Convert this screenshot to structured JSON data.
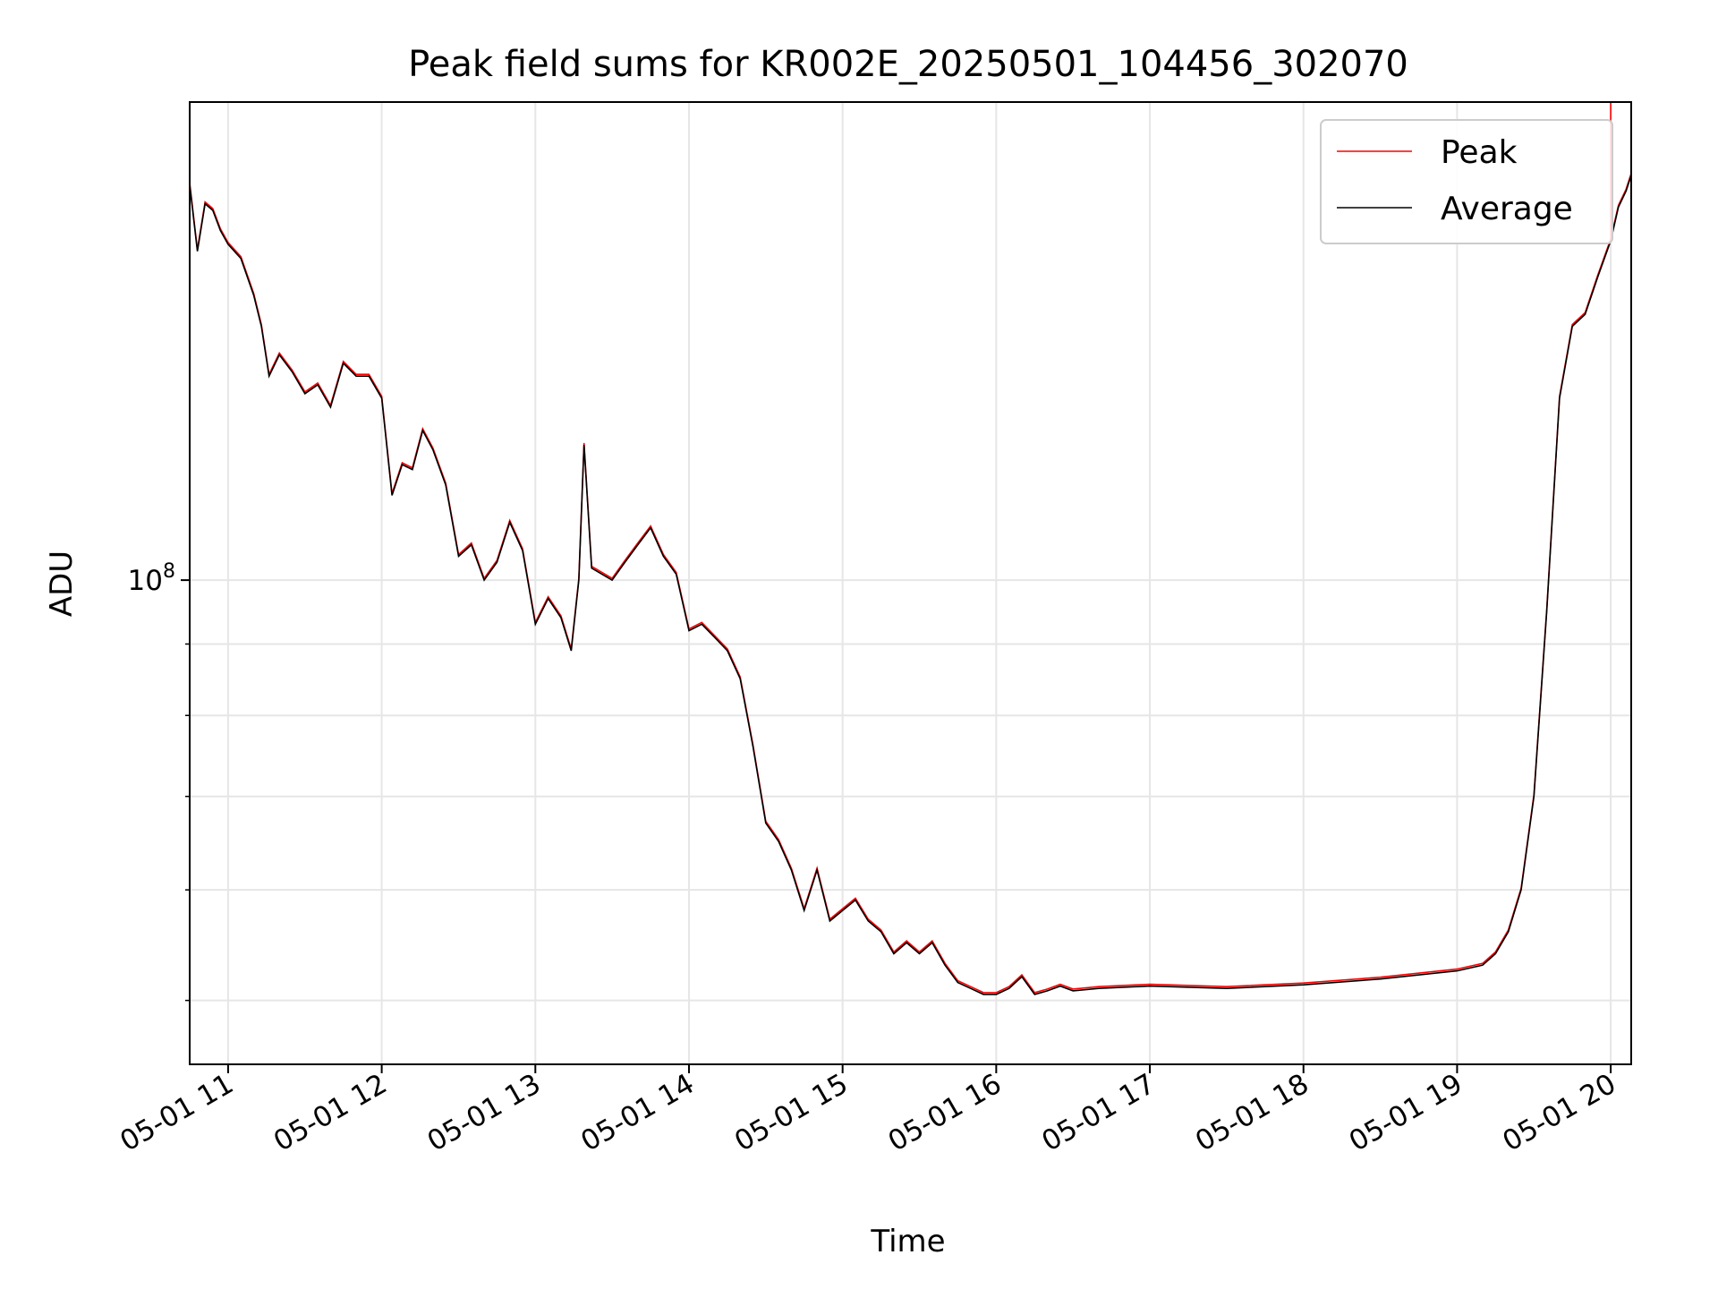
{
  "chart_data": {
    "type": "line",
    "title": "Peak field sums for KR002E_20250501_104456_302070",
    "xlabel": "Time",
    "ylabel": "ADU",
    "x_type": "datetime",
    "xlim": [
      "2025-05-01 10:45",
      "2025-05-01 20:08"
    ],
    "ylim": [
      45000000,
      220000000
    ],
    "yscale": "log",
    "x_ticks": [
      "05-01 11",
      "05-01 12",
      "05-01 13",
      "05-01 14",
      "05-01 15",
      "05-01 16",
      "05-01 17",
      "05-01 18",
      "05-01 19",
      "05-01 20"
    ],
    "y_major_ticks": [
      {
        "value": 100000000,
        "base": "10",
        "exp": "8"
      }
    ],
    "y_minor_ticks": [
      50000000,
      60000000,
      70000000,
      80000000,
      90000000
    ],
    "grid": true,
    "legend_position": "upper right",
    "series": [
      {
        "name": "Peak",
        "color": "#ff0000",
        "line_width": 1
      },
      {
        "name": "Average",
        "color": "#000000",
        "line_width": 1,
        "x": [
          "2025-05-01 10:45",
          "2025-05-01 10:48",
          "2025-05-01 10:51",
          "2025-05-01 10:54",
          "2025-05-01 10:57",
          "2025-05-01 11:00",
          "2025-05-01 11:05",
          "2025-05-01 11:10",
          "2025-05-01 11:13",
          "2025-05-01 11:16",
          "2025-05-01 11:20",
          "2025-05-01 11:25",
          "2025-05-01 11:30",
          "2025-05-01 11:35",
          "2025-05-01 11:40",
          "2025-05-01 11:45",
          "2025-05-01 11:50",
          "2025-05-01 11:55",
          "2025-05-01 12:00",
          "2025-05-01 12:04",
          "2025-05-01 12:08",
          "2025-05-01 12:12",
          "2025-05-01 12:16",
          "2025-05-01 12:20",
          "2025-05-01 12:25",
          "2025-05-01 12:30",
          "2025-05-01 12:35",
          "2025-05-01 12:40",
          "2025-05-01 12:45",
          "2025-05-01 12:50",
          "2025-05-01 12:55",
          "2025-05-01 13:00",
          "2025-05-01 13:05",
          "2025-05-01 13:10",
          "2025-05-01 13:14",
          "2025-05-01 13:17",
          "2025-05-01 13:19",
          "2025-05-01 13:22",
          "2025-05-01 13:26",
          "2025-05-01 13:30",
          "2025-05-01 13:35",
          "2025-05-01 13:40",
          "2025-05-01 13:45",
          "2025-05-01 13:50",
          "2025-05-01 13:55",
          "2025-05-01 14:00",
          "2025-05-01 14:05",
          "2025-05-01 14:10",
          "2025-05-01 14:15",
          "2025-05-01 14:20",
          "2025-05-01 14:25",
          "2025-05-01 14:30",
          "2025-05-01 14:35",
          "2025-05-01 14:40",
          "2025-05-01 14:45",
          "2025-05-01 14:50",
          "2025-05-01 14:55",
          "2025-05-01 15:00",
          "2025-05-01 15:05",
          "2025-05-01 15:10",
          "2025-05-01 15:15",
          "2025-05-01 15:20",
          "2025-05-01 15:25",
          "2025-05-01 15:30",
          "2025-05-01 15:35",
          "2025-05-01 15:40",
          "2025-05-01 15:45",
          "2025-05-01 15:50",
          "2025-05-01 15:55",
          "2025-05-01 16:00",
          "2025-05-01 16:05",
          "2025-05-01 16:10",
          "2025-05-01 16:15",
          "2025-05-01 16:20",
          "2025-05-01 16:25",
          "2025-05-01 16:30",
          "2025-05-01 16:40",
          "2025-05-01 17:00",
          "2025-05-01 17:30",
          "2025-05-01 18:00",
          "2025-05-01 18:30",
          "2025-05-01 19:00",
          "2025-05-01 19:10",
          "2025-05-01 19:15",
          "2025-05-01 19:20",
          "2025-05-01 19:25",
          "2025-05-01 19:30",
          "2025-05-01 19:35",
          "2025-05-01 19:40",
          "2025-05-01 19:45",
          "2025-05-01 19:50",
          "2025-05-01 19:55",
          "2025-05-01 20:00",
          "2025-05-01 20:03",
          "2025-05-01 20:06",
          "2025-05-01 20:08"
        ],
        "y": [
          192000000,
          172000000,
          186000000,
          184000000,
          178000000,
          174000000,
          170000000,
          160000000,
          152000000,
          140000000,
          145000000,
          141000000,
          136000000,
          138000000,
          133000000,
          143000000,
          140000000,
          140000000,
          135000000,
          115000000,
          121000000,
          120000000,
          128000000,
          124000000,
          117000000,
          104000000,
          106000000,
          100000000,
          103000000,
          110000000,
          105000000,
          93000000,
          97000000,
          94000000,
          89000000,
          100000000,
          125000000,
          102000000,
          101000000,
          100000000,
          103000000,
          106000000,
          109000000,
          104000000,
          101000000,
          92000000,
          93000000,
          91000000,
          89000000,
          85000000,
          76000000,
          67000000,
          65000000,
          62000000,
          58000000,
          62000000,
          57000000,
          58000000,
          59000000,
          57000000,
          56000000,
          54000000,
          55000000,
          54000000,
          55000000,
          53000000,
          51500000,
          51000000,
          50500000,
          50500000,
          51000000,
          52000000,
          50500000,
          50800000,
          51200000,
          50800000,
          51000000,
          51200000,
          51000000,
          51300000,
          51800000,
          52500000,
          53000000,
          54000000,
          56000000,
          60000000,
          70000000,
          95000000,
          135000000,
          152000000,
          155000000,
          165000000,
          175000000,
          185000000,
          190000000,
          195000000
        ]
      }
    ]
  }
}
